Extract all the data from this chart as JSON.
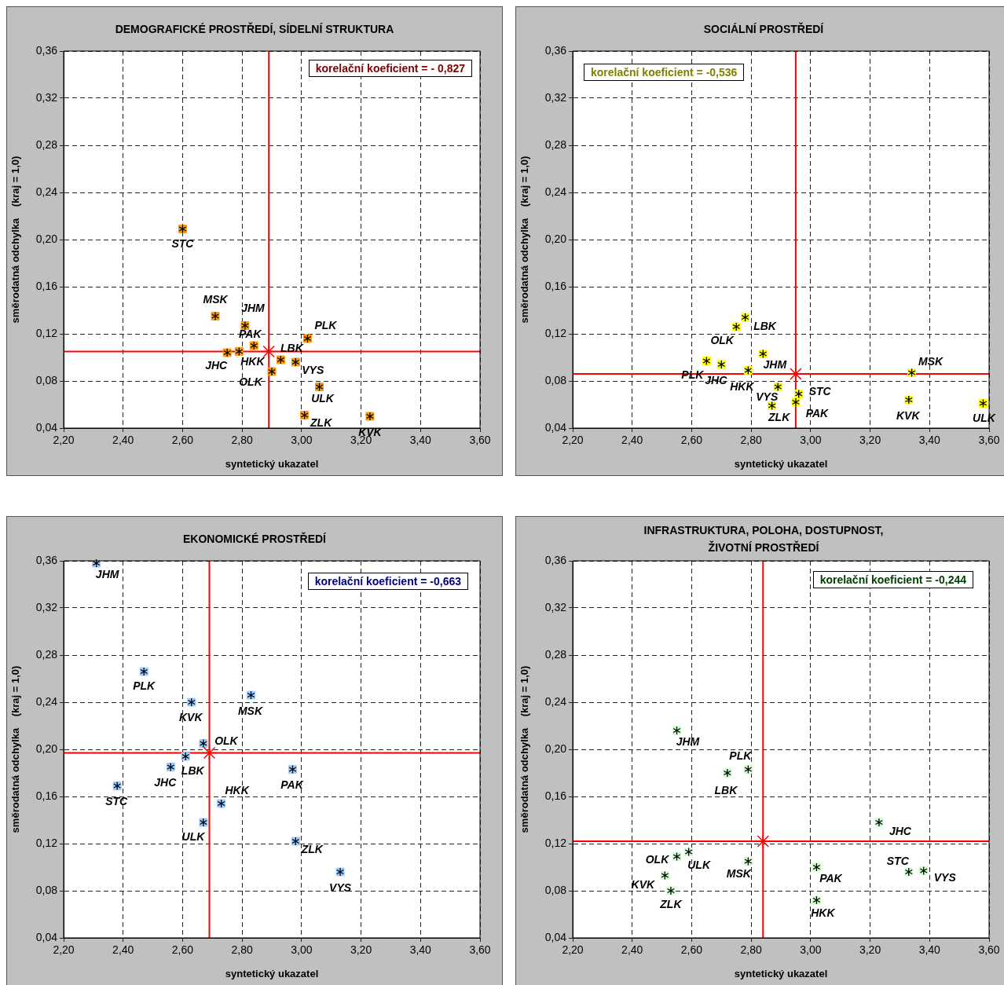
{
  "chart_data": [
    {
      "type": "scatter",
      "title": "DEMOGRAFICKÉ PROSTŘEDÍ, SÍDELNÍ STRUKTURA",
      "xlabel": "syntetický ukazatel",
      "ylabel": "směrodatná odchylka    (kraj = 1,0)",
      "annotations": [
        "korelační koeficient = - 0,827"
      ],
      "xlim": [
        2.2,
        3.6
      ],
      "ylim": [
        0.04,
        0.36
      ],
      "xticks": [
        {
          "value": 2.2,
          "label": "2,20"
        },
        {
          "value": 2.4,
          "label": "2,40"
        },
        {
          "value": 2.6,
          "label": "2,60"
        },
        {
          "value": 2.8,
          "label": "2,80"
        },
        {
          "value": 3.0,
          "label": "3,00"
        },
        {
          "value": 3.2,
          "label": "3,20"
        },
        {
          "value": 3.4,
          "label": "3,40"
        },
        {
          "value": 3.6,
          "label": "3,60"
        }
      ],
      "yticks": [
        {
          "value": 0.04,
          "label": "0,04"
        },
        {
          "value": 0.08,
          "label": "0,08"
        },
        {
          "value": 0.12,
          "label": "0,12"
        },
        {
          "value": 0.16,
          "label": "0,16"
        },
        {
          "value": 0.2,
          "label": "0,20"
        },
        {
          "value": 0.24,
          "label": "0,24"
        },
        {
          "value": 0.28,
          "label": "0,28"
        },
        {
          "value": 0.32,
          "label": "0,32"
        },
        {
          "value": 0.36,
          "label": "0,36"
        }
      ],
      "grid": true,
      "legend": false,
      "marker": "square",
      "ref_lines": [
        {
          "axis": "x",
          "value": 2.89,
          "color": "#ff0000"
        },
        {
          "axis": "y",
          "value": 0.105,
          "color": "#ff0000"
        }
      ],
      "series": [
        {
          "name": "STC",
          "color": "#ff9900",
          "x": [
            2.6
          ],
          "values": [
            0.209
          ]
        },
        {
          "name": "MSK",
          "color": "#ff9900",
          "x": [
            2.71
          ],
          "values": [
            0.135
          ]
        },
        {
          "name": "JHM",
          "color": "#ff9900",
          "x": [
            2.81
          ],
          "values": [
            0.127
          ]
        },
        {
          "name": "PAK",
          "color": "#ff9900",
          "x": [
            2.84
          ],
          "values": [
            0.11
          ]
        },
        {
          "name": "JHC",
          "color": "#ff9900",
          "x": [
            2.75
          ],
          "values": [
            0.104
          ]
        },
        {
          "name": "HKK",
          "color": "#ff9900",
          "x": [
            2.79
          ],
          "values": [
            0.105
          ]
        },
        {
          "name": "OLK",
          "color": "#ff9900",
          "x": [
            2.9
          ],
          "values": [
            0.088
          ]
        },
        {
          "name": "LBK",
          "color": "#ff9900",
          "x": [
            2.93
          ],
          "values": [
            0.098
          ]
        },
        {
          "name": "VYS",
          "color": "#ff9900",
          "x": [
            2.98
          ],
          "values": [
            0.096
          ]
        },
        {
          "name": "PLK",
          "color": "#ff9900",
          "x": [
            3.02
          ],
          "values": [
            0.116
          ]
        },
        {
          "name": "ULK",
          "color": "#ff9900",
          "x": [
            3.06
          ],
          "values": [
            0.075
          ]
        },
        {
          "name": "ZLK",
          "color": "#ff9900",
          "x": [
            3.01
          ],
          "values": [
            0.051
          ]
        },
        {
          "name": "KVK",
          "color": "#ff9900",
          "x": [
            3.23
          ],
          "values": [
            0.05
          ]
        },
        {
          "color": "#ff0000",
          "marker": "cross",
          "x": [
            2.89
          ],
          "values": [
            0.105
          ]
        }
      ]
    },
    {
      "type": "scatter",
      "title": "SOCIÁLNÍ PROSTŘEDÍ",
      "xlabel": "syntetický ukazatel",
      "ylabel": "směrodatná odchylka    (kraj = 1,0)",
      "annotations": [
        "korelační koeficient = -0,536"
      ],
      "xlim": [
        2.2,
        3.6
      ],
      "ylim": [
        0.04,
        0.36
      ],
      "xticks": [
        {
          "value": 2.2,
          "label": "2,20"
        },
        {
          "value": 2.4,
          "label": "2,40"
        },
        {
          "value": 2.6,
          "label": "2,60"
        },
        {
          "value": 2.8,
          "label": "2,80"
        },
        {
          "value": 3.0,
          "label": "3,00"
        },
        {
          "value": 3.2,
          "label": "3,20"
        },
        {
          "value": 3.4,
          "label": "3,40"
        },
        {
          "value": 3.6,
          "label": "3,60"
        }
      ],
      "yticks": [
        {
          "value": 0.04,
          "label": "0,04"
        },
        {
          "value": 0.08,
          "label": "0,08"
        },
        {
          "value": 0.12,
          "label": "0,12"
        },
        {
          "value": 0.16,
          "label": "0,16"
        },
        {
          "value": 0.2,
          "label": "0,20"
        },
        {
          "value": 0.24,
          "label": "0,24"
        },
        {
          "value": 0.28,
          "label": "0,28"
        },
        {
          "value": 0.32,
          "label": "0,32"
        },
        {
          "value": 0.36,
          "label": "0,36"
        }
      ],
      "grid": true,
      "legend": false,
      "marker": "square",
      "ref_lines": [
        {
          "axis": "x",
          "value": 2.95,
          "color": "#ff0000"
        },
        {
          "axis": "y",
          "value": 0.086,
          "color": "#ff0000"
        }
      ],
      "series": [
        {
          "name": "LBK",
          "color": "#ffff00",
          "x": [
            2.78
          ],
          "values": [
            0.134
          ]
        },
        {
          "name": "OLK",
          "color": "#ffff00",
          "x": [
            2.75
          ],
          "values": [
            0.126
          ]
        },
        {
          "name": "JHM",
          "color": "#ffff00",
          "x": [
            2.84
          ],
          "values": [
            0.103
          ]
        },
        {
          "name": "PLK",
          "color": "#ffff00",
          "x": [
            2.65
          ],
          "values": [
            0.097
          ]
        },
        {
          "name": "JHC",
          "color": "#ffff00",
          "x": [
            2.7
          ],
          "values": [
            0.094
          ]
        },
        {
          "name": "HKK",
          "color": "#ffff00",
          "x": [
            2.79
          ],
          "values": [
            0.089
          ]
        },
        {
          "name": "VYS",
          "color": "#ffff00",
          "x": [
            2.89
          ],
          "values": [
            0.075
          ]
        },
        {
          "name": "ZLK",
          "color": "#ffff00",
          "x": [
            2.87
          ],
          "values": [
            0.059
          ]
        },
        {
          "name": "STC",
          "color": "#ffff00",
          "x": [
            2.96
          ],
          "values": [
            0.069
          ]
        },
        {
          "name": "PAK",
          "color": "#ffff00",
          "x": [
            2.95
          ],
          "values": [
            0.062
          ]
        },
        {
          "name": "MSK",
          "color": "#ffff00",
          "x": [
            3.34
          ],
          "values": [
            0.087
          ]
        },
        {
          "name": "KVK",
          "color": "#ffff00",
          "x": [
            3.33
          ],
          "values": [
            0.064
          ]
        },
        {
          "name": "ULK",
          "color": "#ffff00",
          "x": [
            3.58
          ],
          "values": [
            0.061
          ]
        },
        {
          "color": "#ff0000",
          "marker": "cross",
          "x": [
            2.95
          ],
          "values": [
            0.086
          ]
        }
      ]
    },
    {
      "type": "scatter",
      "title": "EKONOMICKÉ PROSTŘEDÍ",
      "xlabel": "syntetický ukazatel",
      "ylabel": "směrodatná odchylka    (kraj = 1,0)",
      "annotations": [
        "korelační koeficient = -0,663"
      ],
      "xlim": [
        2.2,
        3.6
      ],
      "ylim": [
        0.04,
        0.36
      ],
      "xticks": [
        {
          "value": 2.2,
          "label": "2,20"
        },
        {
          "value": 2.4,
          "label": "2,40"
        },
        {
          "value": 2.6,
          "label": "2,60"
        },
        {
          "value": 2.8,
          "label": "2,80"
        },
        {
          "value": 3.0,
          "label": "3,00"
        },
        {
          "value": 3.2,
          "label": "3,20"
        },
        {
          "value": 3.4,
          "label": "3,40"
        },
        {
          "value": 3.6,
          "label": "3,60"
        }
      ],
      "yticks": [
        {
          "value": 0.04,
          "label": "0,04"
        },
        {
          "value": 0.08,
          "label": "0,08"
        },
        {
          "value": 0.12,
          "label": "0,12"
        },
        {
          "value": 0.16,
          "label": "0,16"
        },
        {
          "value": 0.2,
          "label": "0,20"
        },
        {
          "value": 0.24,
          "label": "0,24"
        },
        {
          "value": 0.28,
          "label": "0,28"
        },
        {
          "value": 0.32,
          "label": "0,32"
        },
        {
          "value": 0.36,
          "label": "0,36"
        }
      ],
      "grid": true,
      "legend": false,
      "marker": "square",
      "ref_lines": [
        {
          "axis": "x",
          "value": 2.69,
          "color": "#ff0000"
        },
        {
          "axis": "y",
          "value": 0.197,
          "color": "#ff0000"
        }
      ],
      "series": [
        {
          "name": "JHM",
          "color": "#99ccff",
          "x": [
            2.31
          ],
          "values": [
            0.358
          ]
        },
        {
          "name": "PLK",
          "color": "#99ccff",
          "x": [
            2.47
          ],
          "values": [
            0.266
          ]
        },
        {
          "name": "KVK",
          "color": "#99ccff",
          "x": [
            2.63
          ],
          "values": [
            0.24
          ]
        },
        {
          "name": "MSK",
          "color": "#99ccff",
          "x": [
            2.83
          ],
          "values": [
            0.246
          ]
        },
        {
          "name": "OLK",
          "color": "#99ccff",
          "x": [
            2.67
          ],
          "values": [
            0.205
          ]
        },
        {
          "name": "LBK",
          "color": "#99ccff",
          "x": [
            2.61
          ],
          "values": [
            0.194
          ]
        },
        {
          "name": "JHC",
          "color": "#99ccff",
          "x": [
            2.56
          ],
          "values": [
            0.185
          ]
        },
        {
          "name": "STC",
          "color": "#99ccff",
          "x": [
            2.38
          ],
          "values": [
            0.169
          ]
        },
        {
          "name": "HKK",
          "color": "#99ccff",
          "x": [
            2.73
          ],
          "values": [
            0.154
          ]
        },
        {
          "name": "ULK",
          "color": "#99ccff",
          "x": [
            2.67
          ],
          "values": [
            0.138
          ]
        },
        {
          "name": "PAK",
          "color": "#99ccff",
          "x": [
            2.97
          ],
          "values": [
            0.183
          ]
        },
        {
          "name": "ZLK",
          "color": "#99ccff",
          "x": [
            2.98
          ],
          "values": [
            0.122
          ]
        },
        {
          "name": "VYS",
          "color": "#99ccff",
          "x": [
            3.13
          ],
          "values": [
            0.096
          ]
        },
        {
          "color": "#ff0000",
          "marker": "cross",
          "x": [
            2.69
          ],
          "values": [
            0.197
          ]
        }
      ]
    },
    {
      "type": "scatter",
      "title": "INFRASTRUKTURA, POLOHA, DOSTUPNOST,\nŽIVOTNÍ PROSTŘEDÍ",
      "xlabel": "syntetický ukazatel",
      "ylabel": "směrodatná odchylka    (kraj = 1,0)",
      "annotations": [
        "korelační koeficient = -0,244"
      ],
      "xlim": [
        2.2,
        3.6
      ],
      "ylim": [
        0.04,
        0.36
      ],
      "xticks": [
        {
          "value": 2.2,
          "label": "2,20"
        },
        {
          "value": 2.4,
          "label": "2,40"
        },
        {
          "value": 2.6,
          "label": "2,60"
        },
        {
          "value": 2.8,
          "label": "2,80"
        },
        {
          "value": 3.0,
          "label": "3,00"
        },
        {
          "value": 3.2,
          "label": "3,20"
        },
        {
          "value": 3.4,
          "label": "3,40"
        },
        {
          "value": 3.6,
          "label": "3,60"
        }
      ],
      "yticks": [
        {
          "value": 0.04,
          "label": "0,04"
        },
        {
          "value": 0.08,
          "label": "0,08"
        },
        {
          "value": 0.12,
          "label": "0,12"
        },
        {
          "value": 0.16,
          "label": "0,16"
        },
        {
          "value": 0.2,
          "label": "0,20"
        },
        {
          "value": 0.24,
          "label": "0,24"
        },
        {
          "value": 0.28,
          "label": "0,28"
        },
        {
          "value": 0.32,
          "label": "0,32"
        },
        {
          "value": 0.36,
          "label": "0,36"
        }
      ],
      "grid": true,
      "legend": false,
      "marker": "square",
      "ref_lines": [
        {
          "axis": "x",
          "value": 2.84,
          "color": "#ff0000"
        },
        {
          "axis": "y",
          "value": 0.122,
          "color": "#ff0000"
        }
      ],
      "series": [
        {
          "name": "JHM",
          "color": "#ccffcc",
          "x": [
            2.55
          ],
          "values": [
            0.216
          ]
        },
        {
          "name": "PLK",
          "color": "#ccffcc",
          "x": [
            2.79
          ],
          "values": [
            0.183
          ]
        },
        {
          "name": "LBK",
          "color": "#ccffcc",
          "x": [
            2.72
          ],
          "values": [
            0.18
          ]
        },
        {
          "name": "JHC",
          "color": "#ccffcc",
          "x": [
            3.23
          ],
          "values": [
            0.138
          ]
        },
        {
          "name": "ULK",
          "color": "#ccffcc",
          "x": [
            2.59
          ],
          "values": [
            0.113
          ]
        },
        {
          "name": "OLK",
          "color": "#ccffcc",
          "x": [
            2.55
          ],
          "values": [
            0.109
          ]
        },
        {
          "name": "MSK",
          "color": "#ccffcc",
          "x": [
            2.79
          ],
          "values": [
            0.105
          ]
        },
        {
          "name": "KVK",
          "color": "#ccffcc",
          "x": [
            2.51
          ],
          "values": [
            0.093
          ]
        },
        {
          "name": "ZLK",
          "color": "#ccffcc",
          "x": [
            2.53
          ],
          "values": [
            0.08
          ]
        },
        {
          "name": "PAK",
          "color": "#ccffcc",
          "x": [
            3.02
          ],
          "values": [
            0.1
          ]
        },
        {
          "name": "HKK",
          "color": "#ccffcc",
          "x": [
            3.02
          ],
          "values": [
            0.072
          ]
        },
        {
          "name": "STC",
          "color": "#ccffcc",
          "x": [
            3.33
          ],
          "values": [
            0.096
          ]
        },
        {
          "name": "VYS",
          "color": "#ccffcc",
          "x": [
            3.38
          ],
          "values": [
            0.097
          ]
        },
        {
          "color": "#ff0000",
          "marker": "cross",
          "x": [
            2.84
          ],
          "values": [
            0.122
          ]
        }
      ]
    }
  ]
}
